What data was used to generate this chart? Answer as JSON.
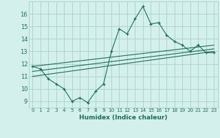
{
  "xlabel": "Humidex (Indice chaleur)",
  "bg_color": "#d4f0ec",
  "grid_color": "#aed4cc",
  "line_color": "#1a6b5a",
  "xlim": [
    -0.5,
    23.5
  ],
  "ylim": [
    8.5,
    17.0
  ],
  "yticks": [
    9,
    10,
    11,
    12,
    13,
    14,
    15,
    16
  ],
  "xticks": [
    0,
    1,
    2,
    3,
    4,
    5,
    6,
    7,
    8,
    9,
    10,
    11,
    12,
    13,
    14,
    15,
    16,
    17,
    18,
    19,
    20,
    21,
    22,
    23
  ],
  "series1_x": [
    0,
    1,
    2,
    3,
    4,
    5,
    6,
    7,
    8,
    9,
    10,
    11,
    12,
    13,
    14,
    15,
    16,
    17,
    18,
    19,
    20,
    21,
    22,
    23
  ],
  "series1_y": [
    11.8,
    11.6,
    10.8,
    10.4,
    10.0,
    9.0,
    9.3,
    8.9,
    9.8,
    10.4,
    13.0,
    14.8,
    14.4,
    15.6,
    16.6,
    15.2,
    15.3,
    14.3,
    13.8,
    13.5,
    13.0,
    13.5,
    12.9,
    12.9
  ],
  "series2_x": [
    0,
    23
  ],
  "series2_y": [
    11.8,
    13.5
  ],
  "series3_x": [
    0,
    23
  ],
  "series3_y": [
    11.4,
    13.2
  ],
  "series4_x": [
    0,
    23
  ],
  "series4_y": [
    11.0,
    13.0
  ]
}
